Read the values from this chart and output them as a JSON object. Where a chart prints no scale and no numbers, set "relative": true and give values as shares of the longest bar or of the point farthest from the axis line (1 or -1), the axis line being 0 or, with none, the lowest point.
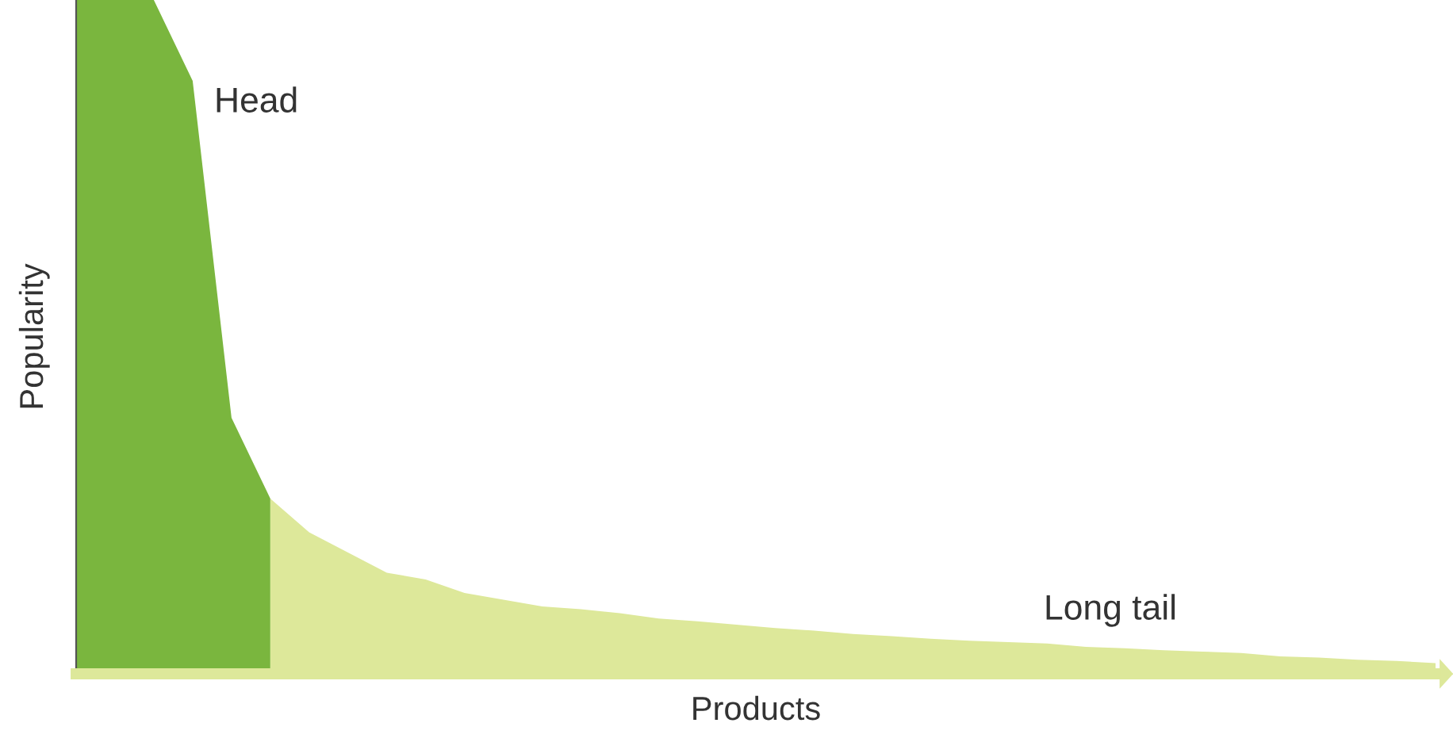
{
  "chart_data": {
    "type": "area",
    "relative": true,
    "xlabel": "Products",
    "ylabel": "Popularity",
    "annotations": [
      "Head",
      "Long tail"
    ],
    "categories": [
      null,
      null,
      null,
      null,
      null,
      null,
      null,
      null,
      null,
      null,
      null,
      null,
      null,
      null,
      null,
      null,
      null,
      null,
      null,
      null,
      null,
      null,
      null,
      null,
      null,
      null,
      null,
      null,
      null,
      null,
      null,
      null,
      null,
      null,
      null,
      null
    ],
    "series": [
      {
        "color": "#7ab63e",
        "values": [
          1,
          1,
          1,
          0.88,
          0.38,
          0.26,
          null,
          null,
          null,
          null,
          null,
          null,
          null,
          null,
          null,
          null,
          null,
          null,
          null,
          null,
          null,
          null,
          null,
          null,
          null,
          null,
          null,
          null,
          null,
          null,
          null,
          null,
          null,
          null,
          null,
          null
        ]
      },
      {
        "color": "#dde89a",
        "values": [
          null,
          null,
          null,
          null,
          null,
          0.26,
          0.21,
          0.18,
          0.15,
          0.14,
          0.12,
          0.11,
          0.1,
          0.096,
          0.09,
          0.082,
          0.078,
          0.073,
          0.068,
          0.064,
          0.059,
          0.056,
          0.052,
          0.049,
          0.047,
          0.045,
          0.04,
          0.038,
          0.035,
          0.033,
          0.031,
          0.026,
          0.024,
          0.021,
          0.019,
          0.016
        ]
      }
    ],
    "legend": false
  }
}
